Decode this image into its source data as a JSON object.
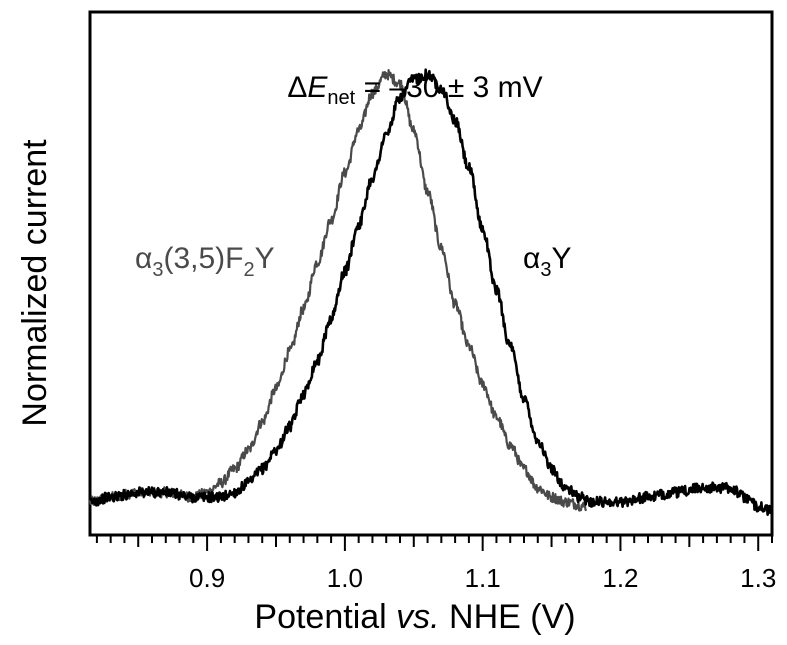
{
  "chart_data": {
    "type": "line",
    "title": "",
    "xlabel_prefix": "Potential ",
    "xlabel_italic": "vs.",
    "xlabel_suffix": " NHE (V)",
    "ylabel": "Normalized current",
    "xlim": [
      0.815,
      1.31
    ],
    "ylim": [
      0,
      1
    ],
    "x_ticks": [
      0.9,
      1.0,
      1.1,
      1.2,
      1.3
    ],
    "x_tick_labels": [
      "0.9",
      "1.0",
      "1.1",
      "1.2",
      "1.3"
    ],
    "x_minor_step": 0.01,
    "y_ticks_shown": false,
    "annotation": {
      "delta": "Δ",
      "E": "E",
      "sub": "net",
      "rest": " = –30 ± 3 mV"
    },
    "series": [
      {
        "name_parts": {
          "a": "α",
          "s1": "3",
          "b": "(3,5)F",
          "s2": "2",
          "c": "Y"
        },
        "color": "#4a4a4a",
        "peak_x": 1.03,
        "peak_y": 0.97,
        "x_range": [
          0.815,
          1.175
        ],
        "points": [
          [
            0.815,
            0.06
          ],
          [
            0.83,
            0.07
          ],
          [
            0.85,
            0.08
          ],
          [
            0.87,
            0.08
          ],
          [
            0.89,
            0.07
          ],
          [
            0.9,
            0.08
          ],
          [
            0.91,
            0.1
          ],
          [
            0.92,
            0.13
          ],
          [
            0.93,
            0.17
          ],
          [
            0.94,
            0.23
          ],
          [
            0.95,
            0.3
          ],
          [
            0.96,
            0.38
          ],
          [
            0.97,
            0.47
          ],
          [
            0.98,
            0.57
          ],
          [
            0.99,
            0.66
          ],
          [
            1.0,
            0.76
          ],
          [
            1.01,
            0.85
          ],
          [
            1.02,
            0.93
          ],
          [
            1.03,
            0.97
          ],
          [
            1.04,
            0.95
          ],
          [
            1.05,
            0.85
          ],
          [
            1.06,
            0.72
          ],
          [
            1.07,
            0.6
          ],
          [
            1.08,
            0.48
          ],
          [
            1.09,
            0.39
          ],
          [
            1.1,
            0.31
          ],
          [
            1.11,
            0.24
          ],
          [
            1.12,
            0.18
          ],
          [
            1.13,
            0.13
          ],
          [
            1.14,
            0.09
          ],
          [
            1.15,
            0.07
          ],
          [
            1.16,
            0.06
          ],
          [
            1.175,
            0.05
          ]
        ]
      },
      {
        "name_parts": {
          "a": "α",
          "s1": "3",
          "c": "Y"
        },
        "color": "#000000",
        "peak_x": 1.055,
        "peak_y": 0.97,
        "x_range": [
          0.815,
          1.31
        ],
        "points": [
          [
            0.815,
            0.06
          ],
          [
            0.83,
            0.07
          ],
          [
            0.85,
            0.08
          ],
          [
            0.87,
            0.08
          ],
          [
            0.89,
            0.07
          ],
          [
            0.91,
            0.07
          ],
          [
            0.92,
            0.08
          ],
          [
            0.93,
            0.1
          ],
          [
            0.94,
            0.13
          ],
          [
            0.95,
            0.17
          ],
          [
            0.96,
            0.22
          ],
          [
            0.97,
            0.29
          ],
          [
            0.98,
            0.36
          ],
          [
            0.99,
            0.45
          ],
          [
            1.0,
            0.55
          ],
          [
            1.01,
            0.65
          ],
          [
            1.02,
            0.75
          ],
          [
            1.03,
            0.84
          ],
          [
            1.04,
            0.92
          ],
          [
            1.05,
            0.96
          ],
          [
            1.06,
            0.97
          ],
          [
            1.07,
            0.94
          ],
          [
            1.08,
            0.87
          ],
          [
            1.09,
            0.77
          ],
          [
            1.1,
            0.64
          ],
          [
            1.11,
            0.51
          ],
          [
            1.12,
            0.39
          ],
          [
            1.13,
            0.28
          ],
          [
            1.14,
            0.19
          ],
          [
            1.15,
            0.13
          ],
          [
            1.16,
            0.09
          ],
          [
            1.17,
            0.07
          ],
          [
            1.18,
            0.06
          ],
          [
            1.2,
            0.06
          ],
          [
            1.22,
            0.07
          ],
          [
            1.24,
            0.08
          ],
          [
            1.26,
            0.09
          ],
          [
            1.28,
            0.09
          ],
          [
            1.29,
            0.07
          ],
          [
            1.3,
            0.05
          ],
          [
            1.31,
            0.04
          ]
        ]
      }
    ]
  }
}
